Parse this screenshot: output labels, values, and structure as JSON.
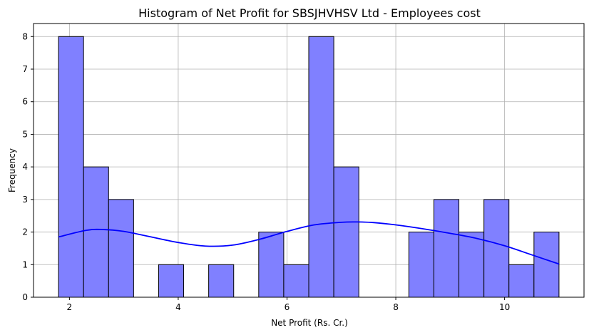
{
  "chart_data": {
    "type": "bar",
    "title": "Histogram of Net Profit for SBSJHVHSV Ltd - Employees cost",
    "xlabel": "Net Profit (Rs. Cr.)",
    "ylabel": "Frequency",
    "bins": [
      {
        "x0": 1.8,
        "x1": 2.26,
        "count": 8
      },
      {
        "x0": 2.26,
        "x1": 2.72,
        "count": 4
      },
      {
        "x0": 2.72,
        "x1": 3.18,
        "count": 3
      },
      {
        "x0": 3.18,
        "x1": 3.64,
        "count": 0
      },
      {
        "x0": 3.64,
        "x1": 4.1,
        "count": 1
      },
      {
        "x0": 4.1,
        "x1": 4.56,
        "count": 0
      },
      {
        "x0": 4.56,
        "x1": 5.02,
        "count": 1
      },
      {
        "x0": 5.02,
        "x1": 5.48,
        "count": 0
      },
      {
        "x0": 5.48,
        "x1": 5.94,
        "count": 2
      },
      {
        "x0": 5.94,
        "x1": 6.4,
        "count": 1
      },
      {
        "x0": 6.4,
        "x1": 6.86,
        "count": 8
      },
      {
        "x0": 6.86,
        "x1": 7.32,
        "count": 4
      },
      {
        "x0": 7.32,
        "x1": 7.78,
        "count": 0
      },
      {
        "x0": 7.78,
        "x1": 8.24,
        "count": 0
      },
      {
        "x0": 8.24,
        "x1": 8.7,
        "count": 2
      },
      {
        "x0": 8.7,
        "x1": 9.16,
        "count": 3
      },
      {
        "x0": 9.16,
        "x1": 9.62,
        "count": 2
      },
      {
        "x0": 9.62,
        "x1": 10.08,
        "count": 3
      },
      {
        "x0": 10.08,
        "x1": 10.54,
        "count": 1
      },
      {
        "x0": 10.54,
        "x1": 11.0,
        "count": 2
      }
    ],
    "kde": {
      "x": [
        1.8,
        2.3,
        2.6,
        3.0,
        3.5,
        4.0,
        4.5,
        5.0,
        5.5,
        6.0,
        6.5,
        7.0,
        7.3,
        7.6,
        8.0,
        8.5,
        9.0,
        9.5,
        10.0,
        10.5,
        11.0
      ],
      "y": [
        1.85,
        2.05,
        2.08,
        2.02,
        1.85,
        1.68,
        1.57,
        1.6,
        1.78,
        2.02,
        2.22,
        2.3,
        2.31,
        2.29,
        2.22,
        2.1,
        1.96,
        1.8,
        1.58,
        1.3,
        1.02
      ]
    },
    "xlim": [
      1.34,
      11.46
    ],
    "ylim": [
      0,
      8.4
    ],
    "xticks": [
      2,
      4,
      6,
      8,
      10
    ],
    "yticks": [
      0,
      1,
      2,
      3,
      4,
      5,
      6,
      7,
      8
    ],
    "grid": true,
    "colors": {
      "bar_fill": "#8080ff",
      "bar_edge": "#000000",
      "kde_line": "#0000ff",
      "grid": "#b0b0b0"
    }
  }
}
